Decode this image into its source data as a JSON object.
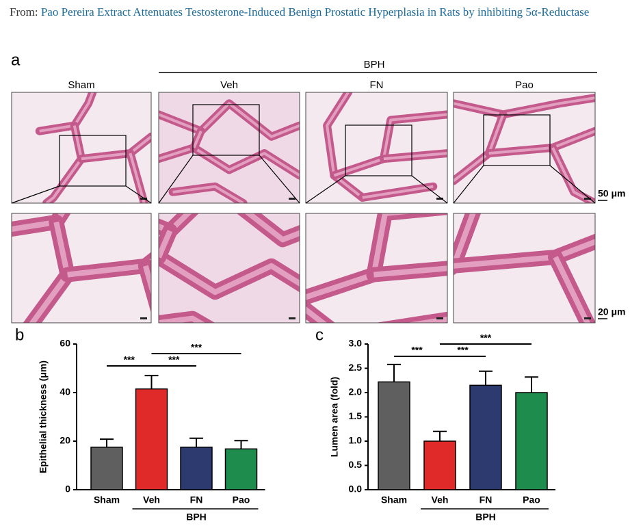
{
  "header": {
    "prefix": "From:",
    "title": "Pao Pereira Extract Attenuates Testosterone-Induced Benign Prostatic Hyperplasia in Rats by inhibiting 5α-Reductase"
  },
  "figure_a": {
    "label": "a",
    "group_label": "BPH",
    "columns": [
      "Sham",
      "Veh",
      "FN",
      "Pao"
    ],
    "scale_bars": [
      "50 μm",
      "20 μm"
    ]
  },
  "chart_data": [
    {
      "type": "bar",
      "label": "b",
      "ylabel": "Epithelial thickness (μm)",
      "categories": [
        "Sham",
        "Veh",
        "FN",
        "Pao"
      ],
      "values": [
        17.5,
        41.5,
        17.5,
        16.8
      ],
      "errors": [
        3.3,
        5.5,
        3.7,
        3.4
      ],
      "colors": [
        "#5f5f5f",
        "#e02a2a",
        "#2c3a6f",
        "#1e8c4c"
      ],
      "ylim": [
        0,
        60
      ],
      "yticks": [
        0,
        20,
        40,
        60
      ],
      "group_label": "BPH",
      "annotations": [
        {
          "text": "***",
          "categories": [
            "Sham",
            "Veh"
          ]
        },
        {
          "text": "***",
          "categories": [
            "Veh",
            "FN"
          ]
        },
        {
          "text": "***",
          "categories": [
            "Veh",
            "Pao"
          ]
        }
      ]
    },
    {
      "type": "bar",
      "label": "c",
      "ylabel": "Lumen area (fold)",
      "categories": [
        "Sham",
        "Veh",
        "FN",
        "Pao"
      ],
      "values": [
        2.22,
        1.0,
        2.15,
        2.0
      ],
      "errors": [
        0.36,
        0.2,
        0.29,
        0.32
      ],
      "colors": [
        "#5f5f5f",
        "#e02a2a",
        "#2c3a6f",
        "#1e8c4c"
      ],
      "ylim": [
        0,
        3
      ],
      "yticks": [
        {
          "value": 0,
          "label": "0.0"
        },
        0.5,
        {
          "value": 1,
          "label": "1.0"
        },
        1.5,
        {
          "value": 2,
          "label": "2.0"
        },
        2.5,
        {
          "value": 3,
          "label": "3.0"
        }
      ],
      "group_label": "BPH",
      "annotations": [
        {
          "text": "***",
          "categories": [
            "Sham",
            "Veh"
          ]
        },
        {
          "text": "***",
          "categories": [
            "Veh",
            "FN"
          ]
        },
        {
          "text": "***",
          "categories": [
            "Veh",
            "Pao"
          ]
        }
      ]
    }
  ]
}
